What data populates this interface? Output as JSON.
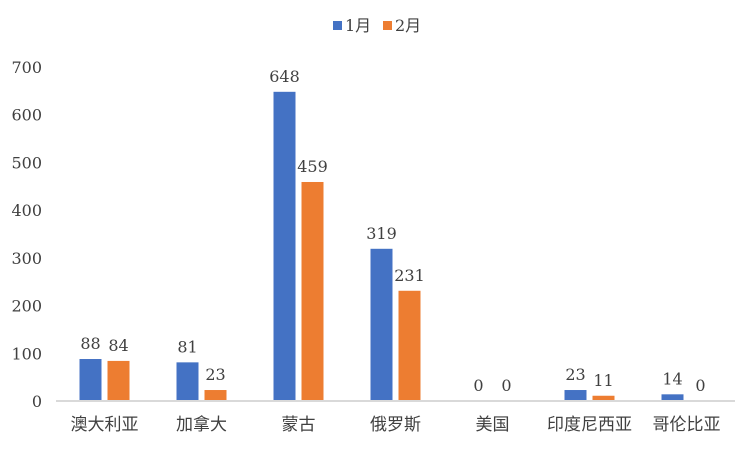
{
  "chart_data": {
    "type": "bar",
    "title": "",
    "xlabel": "",
    "ylabel": "",
    "categories": [
      "澳大利亚",
      "加拿大",
      "蒙古",
      "俄罗斯",
      "美国",
      "印度尼西亚",
      "哥伦比亚"
    ],
    "series": [
      {
        "name": "1月",
        "color": "#4472C4",
        "values": [
          88,
          81,
          648,
          319,
          0,
          23,
          14
        ]
      },
      {
        "name": "2月",
        "color": "#ED7D31",
        "values": [
          84,
          23,
          459,
          231,
          0,
          11,
          0
        ]
      }
    ],
    "ylim": [
      0,
      700
    ],
    "yticks": [
      0,
      100,
      200,
      300,
      400,
      500,
      600,
      700
    ],
    "grid": false,
    "legend": "top",
    "data_labels": true
  }
}
